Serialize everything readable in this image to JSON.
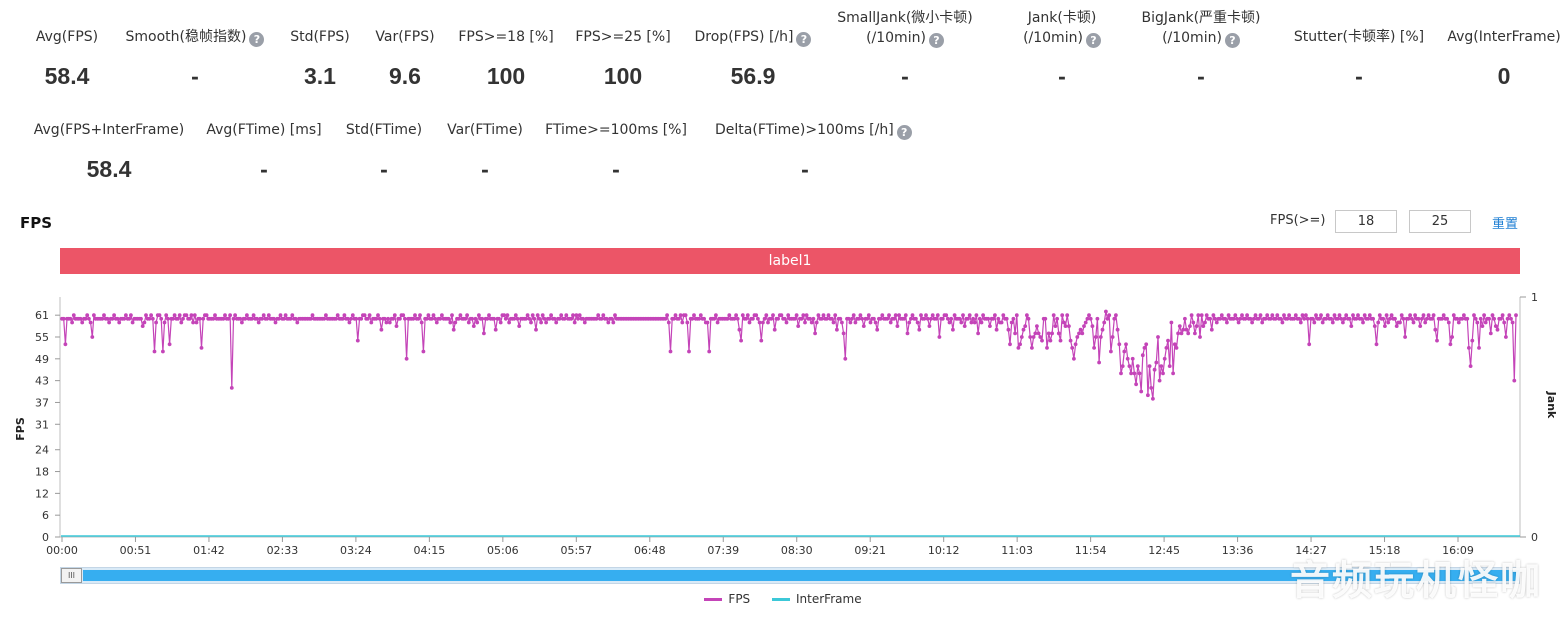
{
  "stats_row1": [
    {
      "label": "Avg(FPS)",
      "value": "58.4",
      "help": false
    },
    {
      "label": "Smooth(稳帧指数)",
      "value": "-",
      "help": true
    },
    {
      "label": "Std(FPS)",
      "value": "3.1",
      "help": false
    },
    {
      "label": "Var(FPS)",
      "value": "9.6",
      "help": false
    },
    {
      "label": "FPS>=18 [%]",
      "value": "100",
      "help": false
    },
    {
      "label": "FPS>=25 [%]",
      "value": "100",
      "help": false
    },
    {
      "label": "Drop(FPS) [/h]",
      "value": "56.9",
      "help": true
    },
    {
      "label": "SmallJank(微小卡顿)",
      "label2": "(/10min)",
      "value": "-",
      "help": true
    },
    {
      "label": "Jank(卡顿)",
      "label2": "(/10min)",
      "value": "-",
      "help": true
    },
    {
      "label": "BigJank(严重卡顿)",
      "label2": "(/10min)",
      "value": "-",
      "help": true
    },
    {
      "label": "Stutter(卡顿率) [%]",
      "value": "-",
      "help": false
    },
    {
      "label": "Avg(InterFrame)",
      "value": "0",
      "help": false
    }
  ],
  "stats_row2": [
    {
      "label": "Avg(FPS+InterFrame)",
      "value": "58.4",
      "help": false
    },
    {
      "label": "Avg(FTime) [ms]",
      "value": "-",
      "help": false
    },
    {
      "label": "Std(FTime)",
      "value": "-",
      "help": false
    },
    {
      "label": "Var(FTime)",
      "value": "-",
      "help": false
    },
    {
      "label": "FTime>=100ms [%]",
      "value": "-",
      "help": false
    },
    {
      "label": "Delta(FTime)>100ms [/h]",
      "value": "-",
      "help": true
    }
  ],
  "help_glyph": "?",
  "chart_header": {
    "title": "FPS",
    "threshold_label": "FPS(>=)",
    "threshold_low": "18",
    "threshold_high": "25",
    "reset_label": "重置"
  },
  "label_band": "label1",
  "scroll_handle_glyph": "III",
  "watermark": "音频玩机怪咖",
  "colors": {
    "fps": "#c444b8",
    "interframe": "#3cc8d8",
    "label_band": "#ec5567",
    "scrollbar": "#36aef0"
  },
  "chart_data": {
    "type": "line",
    "title": "FPS",
    "xlabel": "",
    "ylabel": "FPS",
    "ylabel_right": "Jank",
    "x_ticks": [
      "00:00",
      "00:51",
      "01:42",
      "02:33",
      "03:24",
      "04:15",
      "05:06",
      "05:57",
      "06:48",
      "07:39",
      "08:30",
      "09:21",
      "10:12",
      "11:03",
      "11:54",
      "12:45",
      "13:36",
      "14:27",
      "15:18",
      "16:09"
    ],
    "y_ticks": [
      0,
      6,
      12,
      18,
      24,
      31,
      37,
      43,
      49,
      55,
      61
    ],
    "ylim": [
      0,
      66
    ],
    "y2_ticks": [
      0,
      1
    ],
    "y2lim": [
      0,
      1
    ],
    "series": [
      {
        "name": "FPS",
        "values": [
          60,
          60,
          53,
          60,
          60,
          60,
          59,
          61,
          60,
          60,
          60,
          60,
          59,
          60,
          60,
          61,
          60,
          59,
          55,
          61,
          60,
          60,
          60,
          60,
          60,
          61,
          60,
          60,
          59,
          60,
          60,
          61,
          60,
          60,
          59,
          60,
          60,
          60,
          61,
          60,
          60,
          61,
          59,
          60,
          60,
          60,
          60,
          60,
          58,
          59,
          61,
          60,
          60,
          61,
          60,
          51,
          59,
          61,
          61,
          60,
          51,
          59,
          61,
          60,
          53,
          60,
          60,
          61,
          60,
          60,
          61,
          59,
          60,
          61,
          61,
          60,
          60,
          61,
          59,
          61,
          59,
          60,
          60,
          52,
          60,
          61,
          61,
          60,
          60,
          60,
          60,
          61,
          60,
          60,
          60,
          60,
          60,
          61,
          60,
          60,
          61,
          41,
          60,
          61,
          60,
          60,
          60,
          59,
          60,
          60,
          61,
          60,
          60,
          60,
          61,
          60,
          60,
          59,
          60,
          60,
          61,
          60,
          60,
          61,
          60,
          60,
          60,
          59,
          60,
          60,
          61,
          60,
          60,
          61,
          60,
          60,
          60,
          61,
          60,
          60,
          59,
          60,
          60,
          60,
          60,
          60,
          60,
          60,
          60,
          61,
          60,
          60,
          60,
          60,
          60,
          60,
          60,
          61,
          60,
          60,
          60,
          60,
          60,
          60,
          61,
          60,
          60,
          60,
          61,
          60,
          60,
          59,
          60,
          61,
          60,
          60,
          54,
          60,
          60,
          61,
          61,
          60,
          60,
          61,
          59,
          60,
          60,
          60,
          61,
          60,
          57,
          60,
          60,
          59,
          60,
          59,
          60,
          60,
          61,
          58,
          60,
          60,
          61,
          61,
          60,
          49,
          60,
          60,
          60,
          60,
          61,
          60,
          60,
          61,
          59,
          51,
          60,
          60,
          61,
          60,
          60,
          61,
          60,
          59,
          60,
          60,
          61,
          60,
          60,
          60,
          60,
          59,
          61,
          57,
          59,
          60,
          60,
          61,
          60,
          60,
          60,
          61,
          59,
          60,
          60,
          58,
          60,
          59,
          61,
          60,
          60,
          56,
          60,
          60,
          61,
          60,
          60,
          60,
          57,
          60,
          60,
          59,
          61,
          61,
          60,
          61,
          59,
          60,
          60,
          60,
          61,
          60,
          58,
          60,
          60,
          60,
          60,
          61,
          60,
          59,
          61,
          60,
          57,
          61,
          60,
          59,
          61,
          60,
          59,
          60,
          60,
          61,
          60,
          60,
          59,
          60,
          60,
          61,
          60,
          60,
          61,
          60,
          60,
          60,
          61,
          59,
          61,
          60,
          61,
          60,
          60,
          59,
          60,
          60,
          60,
          60,
          60,
          60,
          60,
          61,
          60,
          60,
          61,
          60,
          60,
          59,
          60,
          60,
          59,
          61,
          60,
          60,
          60,
          60,
          60,
          60,
          60,
          60,
          60,
          60,
          60,
          60,
          60,
          60,
          60,
          60,
          60,
          60,
          60,
          60,
          60,
          60,
          60,
          60,
          60,
          60,
          60,
          60,
          60,
          60,
          61,
          59,
          51,
          60,
          60,
          61,
          60,
          60,
          61,
          59,
          61,
          61,
          59,
          51,
          60,
          60,
          61,
          60,
          60,
          60,
          61,
          60,
          60,
          59,
          59,
          51,
          60,
          60,
          60,
          61,
          59,
          60,
          60,
          60,
          60,
          60,
          60,
          61,
          60,
          60,
          60,
          61,
          60,
          57,
          54,
          61,
          60,
          60,
          61,
          59,
          60,
          60,
          61,
          61,
          60,
          59,
          54,
          59,
          60,
          61,
          59,
          60,
          60,
          61,
          57,
          60,
          60,
          61,
          61,
          60,
          60,
          59,
          61,
          60,
          60,
          60,
          60,
          61,
          58,
          60,
          60,
          61,
          59,
          61,
          60,
          60,
          59,
          60,
          56,
          59,
          61,
          60,
          60,
          61,
          60,
          60,
          61,
          60,
          60,
          59,
          61,
          57,
          60,
          60,
          59,
          56,
          49,
          60,
          60,
          59,
          60,
          61,
          59,
          60,
          60,
          61,
          60,
          58,
          60,
          60,
          61,
          59,
          60,
          60,
          59,
          57,
          60,
          60,
          61,
          60,
          60,
          60,
          61,
          59,
          60,
          60,
          61,
          58,
          61,
          60,
          60,
          60,
          61,
          56,
          59,
          60,
          61,
          60,
          60,
          59,
          57,
          61,
          60,
          60,
          61,
          60,
          58,
          60,
          61,
          60,
          60,
          61,
          55,
          60,
          60,
          61,
          61,
          60,
          59,
          60,
          57,
          61,
          60,
          60,
          60,
          59,
          61,
          58,
          60,
          60,
          61,
          59,
          60,
          59,
          61,
          56,
          60,
          59,
          61,
          60,
          60,
          60,
          58,
          60,
          60,
          61,
          57,
          60,
          59,
          59,
          61,
          60,
          60,
          57,
          53,
          59,
          60,
          56,
          61,
          52,
          53,
          55,
          57,
          58,
          61,
          60,
          55,
          52,
          55,
          56,
          58,
          56,
          55,
          54,
          60,
          60,
          52,
          56,
          54,
          56,
          61,
          58,
          60,
          56,
          54,
          61,
          59,
          58,
          61,
          58,
          54,
          52,
          49,
          53,
          55,
          56,
          57,
          56,
          58,
          59,
          60,
          61,
          60,
          58,
          52,
          55,
          60,
          48,
          55,
          57,
          59,
          62,
          60,
          61,
          51,
          55,
          60,
          61,
          57,
          53,
          45,
          47,
          51,
          53,
          49,
          47,
          45,
          49,
          45,
          42,
          47,
          45,
          40,
          50,
          52,
          53,
          39,
          47,
          41,
          38,
          46,
          48,
          55,
          43,
          47,
          45,
          49,
          52,
          54,
          47,
          59,
          45,
          53,
          52,
          56,
          58,
          56,
          57,
          60,
          57,
          56,
          58,
          61,
          59,
          56,
          58,
          61,
          55,
          61,
          58,
          59,
          61,
          60,
          60,
          57,
          61,
          60,
          59,
          60,
          60,
          61,
          60,
          60,
          59,
          61,
          60,
          60,
          60,
          61,
          60,
          59,
          60,
          61,
          60,
          60,
          61,
          60,
          60,
          59,
          60,
          61,
          60,
          60,
          61,
          59,
          60,
          60,
          61,
          60,
          60,
          61,
          60,
          60,
          61,
          60,
          60,
          59,
          61,
          60,
          60,
          61,
          60,
          60,
          60,
          61,
          60,
          60,
          59,
          61,
          60,
          61,
          60,
          53,
          60,
          60,
          59,
          61,
          60,
          60,
          61,
          59,
          60,
          60,
          61,
          60,
          60,
          59,
          61,
          60,
          60,
          61,
          60,
          59,
          60,
          61,
          60,
          60,
          58,
          61,
          60,
          60,
          61,
          60,
          60,
          59,
          61,
          60,
          60,
          61,
          60,
          60,
          58,
          53,
          59,
          61,
          60,
          60,
          58,
          61,
          59,
          60,
          61,
          60,
          60,
          58,
          59,
          59,
          61,
          60,
          55,
          60,
          60,
          61,
          60,
          59,
          61,
          60,
          60,
          58,
          60,
          61,
          59,
          60,
          61,
          60,
          60,
          61,
          57,
          54,
          60,
          60,
          60,
          61,
          60,
          60,
          59,
          53,
          55,
          61,
          60,
          60,
          59,
          60,
          60,
          61,
          60,
          60,
          52,
          47,
          54,
          61,
          60,
          59,
          52,
          60,
          58,
          61,
          59,
          60,
          60,
          56,
          61,
          60,
          58,
          57,
          60,
          60,
          61,
          59,
          55,
          60,
          61,
          60,
          59,
          43,
          61
        ]
      },
      {
        "name": "InterFrame",
        "values": [
          0
        ]
      }
    ]
  }
}
